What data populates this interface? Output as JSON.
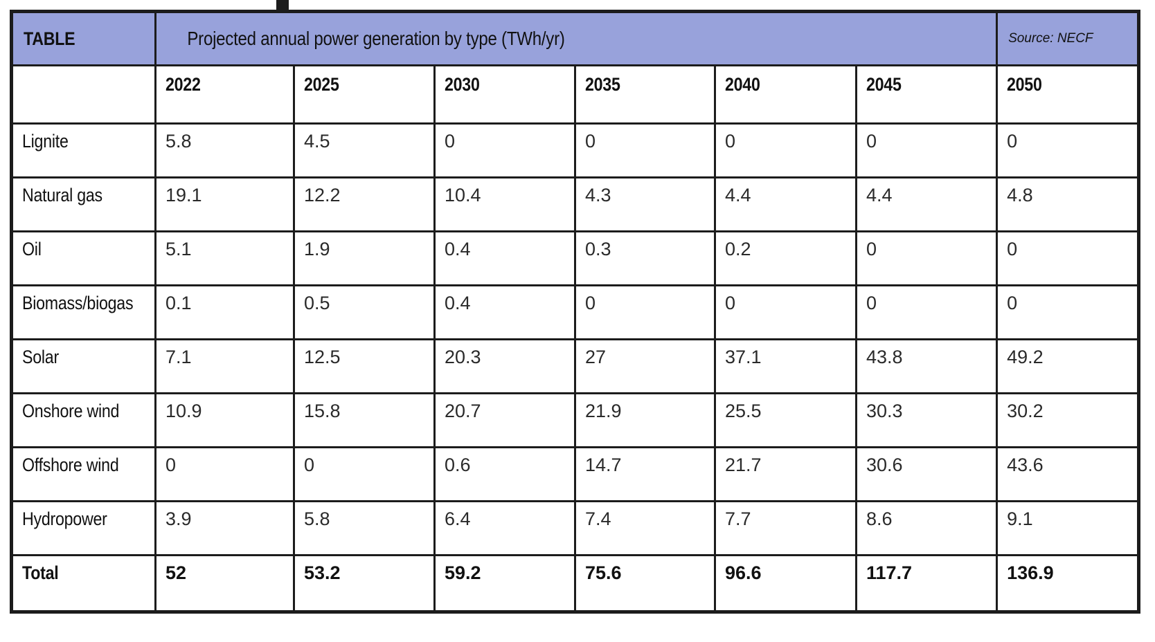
{
  "chart_data": {
    "type": "table",
    "corner_label": "TABLE",
    "title": "Projected annual power generation by type (TWh/yr)",
    "source": "Source: NECF",
    "unit": "TWh/yr",
    "categories": [
      "2022",
      "2025",
      "2030",
      "2035",
      "2040",
      "2045",
      "2050"
    ],
    "series": [
      {
        "name": "Lignite",
        "values": [
          5.8,
          4.5,
          0,
          0,
          0,
          0,
          0
        ]
      },
      {
        "name": "Natural gas",
        "values": [
          19.1,
          12.2,
          10.4,
          4.3,
          4.4,
          4.4,
          4.8
        ]
      },
      {
        "name": "Oil",
        "values": [
          5.1,
          1.9,
          0.4,
          0.3,
          0.2,
          0,
          0
        ]
      },
      {
        "name": "Biomass/biogas",
        "values": [
          0.1,
          0.5,
          0.4,
          0,
          0,
          0,
          0
        ]
      },
      {
        "name": "Solar",
        "values": [
          7.1,
          12.5,
          20.3,
          27,
          37.1,
          43.8,
          49.2
        ]
      },
      {
        "name": "Onshore wind",
        "values": [
          10.9,
          15.8,
          20.7,
          21.9,
          25.5,
          30.3,
          30.2
        ]
      },
      {
        "name": "Offshore wind",
        "values": [
          0,
          0,
          0.6,
          14.7,
          21.7,
          30.6,
          43.6
        ]
      },
      {
        "name": "Hydropower",
        "values": [
          3.9,
          5.8,
          6.4,
          7.4,
          7.7,
          8.6,
          9.1
        ]
      }
    ],
    "total": {
      "name": "Total",
      "values": [
        52,
        53.2,
        59.2,
        75.6,
        96.6,
        117.7,
        136.9
      ]
    },
    "layout": {
      "grid": "on",
      "header_bg": "#98a2db",
      "border_color": "#1c1c1c",
      "source_text_color": "#565b63"
    }
  }
}
